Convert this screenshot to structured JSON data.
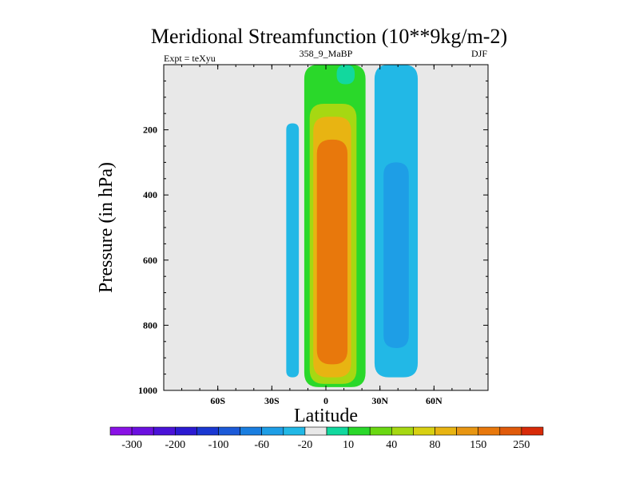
{
  "chart_data": {
    "type": "contour",
    "title": "Meridional Streamfunction (10**9kg/m-2)",
    "subtitle_left": "Expt = teXyu",
    "subtitle_center": "358_9_MaBP",
    "subtitle_right": "DJF",
    "xlabel": "Latitude",
    "ylabel": "Pressure (in hPa)",
    "xlim": [
      -90,
      90
    ],
    "ylim": [
      1000,
      0
    ],
    "x_ticks": [
      {
        "value": -60,
        "label": "60S"
      },
      {
        "value": -30,
        "label": "30S"
      },
      {
        "value": 0,
        "label": "0"
      },
      {
        "value": 30,
        "label": "30N"
      },
      {
        "value": 60,
        "label": "60N"
      }
    ],
    "y_ticks": [
      {
        "value": 200,
        "label": "200"
      },
      {
        "value": 400,
        "label": "400"
      },
      {
        "value": 600,
        "label": "600"
      },
      {
        "value": 800,
        "label": "800"
      },
      {
        "value": 1000,
        "label": "1000"
      }
    ],
    "background_color": "#e8e8e8",
    "colorbar": {
      "colors": [
        "#8a12e6",
        "#6b10e0",
        "#4a12d8",
        "#2b1ad2",
        "#1a38d2",
        "#1c5ad8",
        "#1a7ee0",
        "#1e9ee6",
        "#22b8e6",
        "#e8e8e8",
        "#12d89e",
        "#2ad82a",
        "#6ad812",
        "#a6d812",
        "#d8d012",
        "#e8b412",
        "#e89612",
        "#e8780c",
        "#e05a0a",
        "#d82a08"
      ],
      "labels": [
        "-300",
        "-200",
        "-100",
        "-60",
        "-20",
        "10",
        "40",
        "80",
        "150",
        "250"
      ],
      "levels": [
        -300,
        -250,
        -200,
        -150,
        -100,
        -80,
        -60,
        -40,
        -20,
        -10,
        10,
        20,
        40,
        60,
        80,
        100,
        150,
        200,
        250
      ]
    },
    "contour_regions": [
      {
        "level": 20,
        "color": "#2ad82a",
        "lat_range": [
          -12,
          22
        ],
        "p_range": [
          0,
          990
        ]
      },
      {
        "level": 60,
        "color": "#a6d812",
        "lat_range": [
          -9,
          17
        ],
        "p_range": [
          120,
          980
        ]
      },
      {
        "level": 100,
        "color": "#e8b412",
        "lat_range": [
          -7,
          14
        ],
        "p_range": [
          160,
          960
        ]
      },
      {
        "level": 150,
        "color": "#e8780c",
        "lat_range": [
          -5,
          12
        ],
        "p_range": [
          230,
          920
        ]
      },
      {
        "level": -20,
        "color": "#22b8e6",
        "lat_range": [
          -22,
          -15
        ],
        "p_range": [
          180,
          960
        ]
      },
      {
        "level": -20,
        "color": "#22b8e6",
        "lat_range": [
          27,
          51
        ],
        "p_range": [
          0,
          960
        ]
      },
      {
        "level": -60,
        "color": "#1e9ee6",
        "lat_range": [
          32,
          46
        ],
        "p_range": [
          300,
          870
        ]
      },
      {
        "level": 10,
        "color": "#12d89e",
        "lat_range": [
          6,
          16
        ],
        "p_range": [
          0,
          60
        ]
      }
    ]
  }
}
